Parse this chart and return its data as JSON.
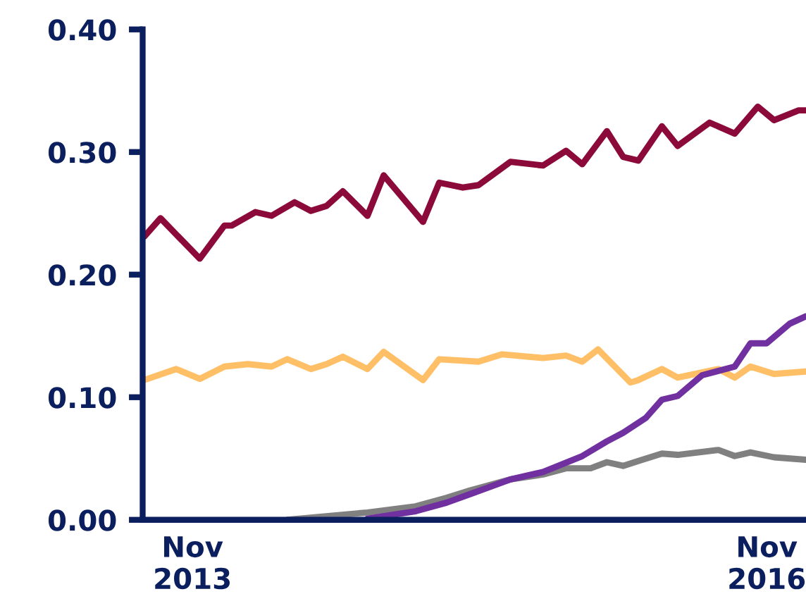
{
  "chart_data": {
    "type": "line",
    "xlim": [
      "2013-07-29",
      "2017-01-15"
    ],
    "ylim": [
      0,
      0.4
    ],
    "yticks": [
      {
        "value": 0,
        "label": "0.00"
      },
      {
        "value": 0.1,
        "label": "0.10"
      },
      {
        "value": 0.2,
        "label": "0.20"
      },
      {
        "value": 0.3,
        "label": "0.30"
      },
      {
        "value": 0.4,
        "label": "0.40"
      }
    ],
    "xticks": [
      {
        "value": "2013-11-01",
        "label": "Nov\n2013"
      },
      {
        "value": "2016-11-01",
        "label": "Nov\n2016"
      }
    ],
    "grid": false,
    "legend": false,
    "marker": "none",
    "line_style": "solid",
    "series": [
      {
        "color": "#8b0a3a",
        "x": [
          "2013-08-01",
          "2013-09-01",
          "2013-11-15",
          "2014-01-01",
          "2014-01-15",
          "2014-03-01",
          "2014-04-01",
          "2014-05-15",
          "2014-06-15",
          "2014-07-15",
          "2014-08-15",
          "2014-10-01",
          "2014-11-01",
          "2015-01-15",
          "2015-02-15",
          "2015-04-01",
          "2015-05-01",
          "2015-07-01",
          "2015-09-01",
          "2015-10-15",
          "2015-11-15",
          "2016-01-01",
          "2016-02-01",
          "2016-03-01",
          "2016-04-15",
          "2016-05-15",
          "2016-07-15",
          "2016-09-01",
          "2016-10-15",
          "2016-11-15",
          "2017-01-01",
          "2017-01-15"
        ],
        "values": [
          0.231,
          0.246,
          0.213,
          0.24,
          0.24,
          0.251,
          0.248,
          0.259,
          0.252,
          0.256,
          0.268,
          0.248,
          0.281,
          0.243,
          0.275,
          0.271,
          0.273,
          0.292,
          0.289,
          0.301,
          0.29,
          0.317,
          0.296,
          0.293,
          0.321,
          0.305,
          0.324,
          0.315,
          0.337,
          0.326,
          0.334,
          0.334
        ]
      },
      {
        "color": "#ffbf66",
        "x": [
          "2013-08-01",
          "2013-10-01",
          "2013-11-15",
          "2014-01-01",
          "2014-02-15",
          "2014-04-01",
          "2014-05-01",
          "2014-06-15",
          "2014-07-15",
          "2014-08-15",
          "2014-10-01",
          "2014-11-01",
          "2015-01-15",
          "2015-02-15",
          "2015-05-01",
          "2015-06-15",
          "2015-09-01",
          "2015-10-15",
          "2015-11-15",
          "2015-12-15",
          "2016-02-15",
          "2016-03-01",
          "2016-04-15",
          "2016-05-15",
          "2016-08-01",
          "2016-09-01",
          "2016-10-01",
          "2016-11-15",
          "2017-01-15"
        ],
        "values": [
          0.114,
          0.123,
          0.115,
          0.125,
          0.127,
          0.125,
          0.131,
          0.123,
          0.127,
          0.133,
          0.123,
          0.137,
          0.114,
          0.131,
          0.129,
          0.135,
          0.132,
          0.134,
          0.129,
          0.139,
          0.112,
          0.114,
          0.123,
          0.116,
          0.123,
          0.116,
          0.125,
          0.119,
          0.121
        ]
      },
      {
        "color": "#808080",
        "x": [
          "2014-05-01",
          "2014-10-01",
          "2015-01-01",
          "2015-03-01",
          "2015-04-15",
          "2015-07-01",
          "2015-09-01",
          "2015-10-15",
          "2015-12-01",
          "2016-01-01",
          "2016-02-01",
          "2016-03-01",
          "2016-04-15",
          "2016-05-15",
          "2016-08-01",
          "2016-09-01",
          "2016-10-01",
          "2016-11-15",
          "2017-01-15"
        ],
        "values": [
          0.0,
          0.006,
          0.011,
          0.018,
          0.024,
          0.033,
          0.037,
          0.042,
          0.042,
          0.047,
          0.044,
          0.048,
          0.054,
          0.053,
          0.057,
          0.052,
          0.055,
          0.051,
          0.049
        ]
      },
      {
        "color": "#7030a0",
        "x": [
          "2014-10-01",
          "2015-01-01",
          "2015-03-01",
          "2015-04-15",
          "2015-07-01",
          "2015-09-01",
          "2015-11-15",
          "2016-01-01",
          "2016-02-01",
          "2016-03-15",
          "2016-04-15",
          "2016-05-15",
          "2016-07-01",
          "2016-09-01",
          "2016-10-01",
          "2016-11-01",
          "2016-12-15",
          "2017-01-15"
        ],
        "values": [
          0.001,
          0.007,
          0.014,
          0.021,
          0.033,
          0.039,
          0.052,
          0.064,
          0.071,
          0.083,
          0.098,
          0.101,
          0.118,
          0.125,
          0.144,
          0.144,
          0.16,
          0.166
        ]
      }
    ]
  }
}
